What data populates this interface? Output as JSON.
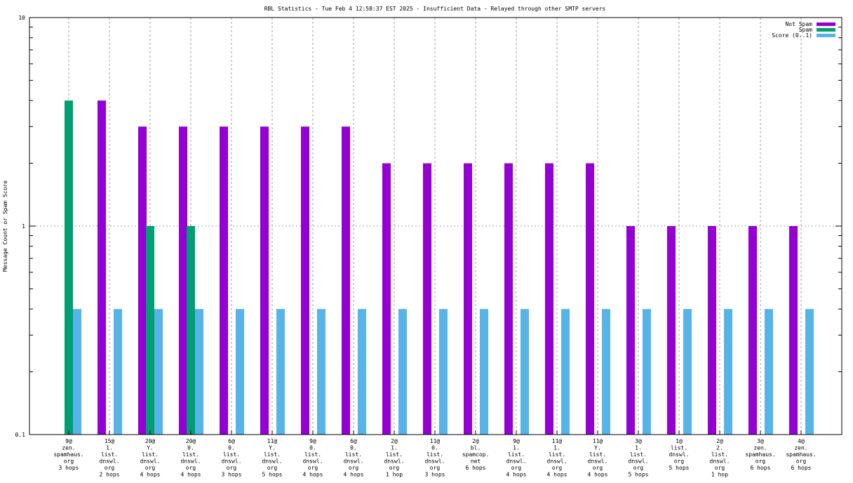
{
  "chart_data": {
    "type": "bar",
    "title": "RBL Statistics - Tue Feb  4 12:58:37 EST 2025 - Insufficient Data - Relayed through other SMTP servers",
    "xlabel": "",
    "ylabel": "Message Count or Spam Score",
    "yscale": "log",
    "ylim": [
      0.1,
      10
    ],
    "yticks": [
      "10",
      "1",
      "0.1"
    ],
    "legend_position": "top-right",
    "grid": true,
    "categories": [
      [
        "9@",
        "zen.",
        "spamhaus.",
        "org",
        "3 hops"
      ],
      [
        "15@",
        "1.",
        "list.",
        "dnswl.",
        "org",
        "2 hops"
      ],
      [
        "20@",
        "Y.",
        "list.",
        "dnswl.",
        "org",
        "4 hops"
      ],
      [
        "20@",
        "0.",
        "list.",
        "dnswl.",
        "org",
        "4 hops"
      ],
      [
        "6@",
        "0.",
        "list.",
        "dnswl.",
        "org",
        "3 hops"
      ],
      [
        "11@",
        "Y.",
        "list.",
        "dnswl.",
        "org",
        "5 hops"
      ],
      [
        "9@",
        "0.",
        "list.",
        "dnswl.",
        "org",
        "4 hops"
      ],
      [
        "6@",
        "0.",
        "list.",
        "dnswl.",
        "org",
        "4 hops"
      ],
      [
        "2@",
        "1.",
        "list.",
        "dnswl.",
        "org",
        "1 hop"
      ],
      [
        "11@",
        "0.",
        "list.",
        "dnswl.",
        "org",
        "3 hops"
      ],
      [
        "2@",
        "bl.",
        "spamcop.",
        "net",
        "6 hops"
      ],
      [
        "9@",
        "1.",
        "list.",
        "dnswl.",
        "org",
        "4 hops"
      ],
      [
        "11@",
        "1.",
        "list.",
        "dnswl.",
        "org",
        "4 hops"
      ],
      [
        "11@",
        "Y.",
        "list.",
        "dnswl.",
        "org",
        "4 hops"
      ],
      [
        "3@",
        "1.",
        "list.",
        "dnswl.",
        "org",
        "5 hops"
      ],
      [
        "1@",
        "list.",
        "dnswl.",
        "org",
        "5 hops"
      ],
      [
        "2@",
        "2.",
        "list.",
        "dnswl.",
        "org",
        "1 hop"
      ],
      [
        "3@",
        "zen.",
        "spamhaus.",
        "org",
        "6 hops"
      ],
      [
        "4@",
        "zen.",
        "spamhaus.",
        "org",
        "6 hops"
      ]
    ],
    "series": [
      {
        "name": "Not Spam",
        "color": "#9400d3",
        "values": [
          0,
          4,
          3,
          3,
          3,
          3,
          3,
          3,
          2,
          2,
          2,
          2,
          2,
          2,
          1,
          1,
          1,
          1,
          1
        ]
      },
      {
        "name": "Spam",
        "color": "#009e73",
        "values": [
          4,
          0,
          1,
          1,
          0,
          0,
          0,
          0,
          0,
          0,
          0,
          0,
          0,
          0,
          0,
          0,
          0,
          0,
          0
        ]
      },
      {
        "name": "Score (0..1)",
        "color": "#56b4e9",
        "values": [
          0.4,
          0.4,
          0.4,
          0.4,
          0.4,
          0.4,
          0.4,
          0.4,
          0.4,
          0.4,
          0.4,
          0.4,
          0.4,
          0.4,
          0.4,
          0.4,
          0.4,
          0.4,
          0.4
        ]
      }
    ]
  }
}
